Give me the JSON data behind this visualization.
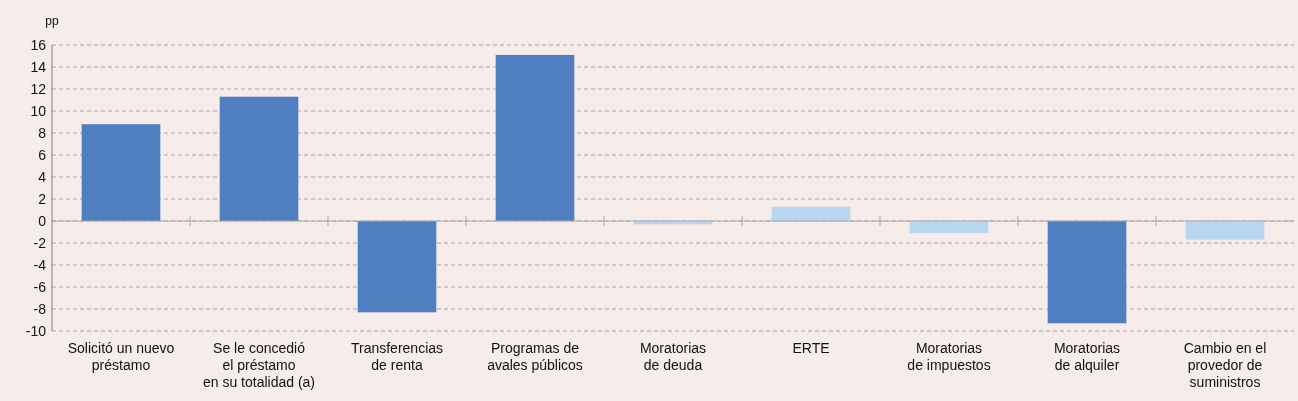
{
  "chart_data": {
    "type": "bar",
    "ylabel": "pp",
    "categories": [
      "Solicitó un nuevo\npréstamo",
      "Se le concedió\nel préstamo\nen su totalidad (a)",
      "Transferencias\nde renta",
      "Programas de\navales públicos",
      "Moratorias\nde deuda",
      "ERTE",
      "Moratorias\nde impuestos",
      "Moratorias\nde alquiler",
      "Cambio en el\nprovedor de\nsuministros"
    ],
    "values": [
      8.8,
      11.3,
      -8.3,
      15.1,
      -0.3,
      1.3,
      -1.1,
      -9.3,
      -1.7
    ],
    "colors": [
      "#4f7fc0",
      "#4f7fc0",
      "#4f7fc0",
      "#4f7fc0",
      "#b8d6f0",
      "#b8d6f0",
      "#b8d6f0",
      "#4f7fc0",
      "#b8d6f0"
    ],
    "ylim": [
      -10,
      16
    ],
    "yticks": [
      -10,
      -8,
      -6,
      -4,
      -2,
      0,
      2,
      4,
      6,
      8,
      10,
      12,
      14,
      16
    ],
    "grid": "y"
  }
}
